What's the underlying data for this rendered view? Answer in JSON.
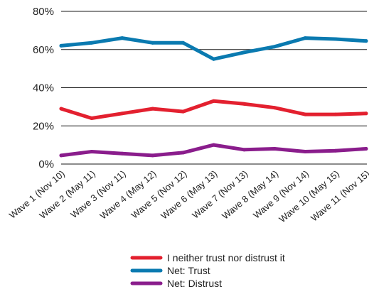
{
  "chart_data": {
    "type": "line",
    "categories": [
      "Wave 1 (Nov 10)",
      "Wave 2 (May 11)",
      "Wave 3 (Nov 11)",
      "Wave 4 (May 12)",
      "Wave 5 (Nov 12)",
      "Wave 6 (May 13)",
      "Wave 7 (Nov 13)",
      "Wave 8 (May 14)",
      "Wave 9 (Nov 14)",
      "Wave 10 (May 15)",
      "Wave 11 (Nov 15)"
    ],
    "y_ticks": [
      "0%",
      "20%",
      "40%",
      "60%",
      "80%"
    ],
    "y_tick_values": [
      0,
      20,
      40,
      60,
      80
    ],
    "ylim": [
      0,
      80
    ],
    "grid": "horizontal",
    "legend_position": "bottom",
    "series": [
      {
        "name": "I neither trust nor distrust it",
        "color": "#e3202f",
        "values": [
          29,
          24,
          26.5,
          29,
          27.5,
          33,
          31.5,
          29.5,
          26,
          26,
          26.5
        ]
      },
      {
        "name": "Net: Trust",
        "color": "#0a7ab0",
        "values": [
          62,
          63.5,
          66,
          63.5,
          63.5,
          55,
          58.5,
          61.5,
          66,
          65.5,
          64.5
        ]
      },
      {
        "name": "Net: Distrust",
        "color": "#8a1d8c",
        "values": [
          4.5,
          6.5,
          5.5,
          4.5,
          6,
          10,
          7.5,
          8,
          6.5,
          7,
          8
        ]
      }
    ]
  }
}
